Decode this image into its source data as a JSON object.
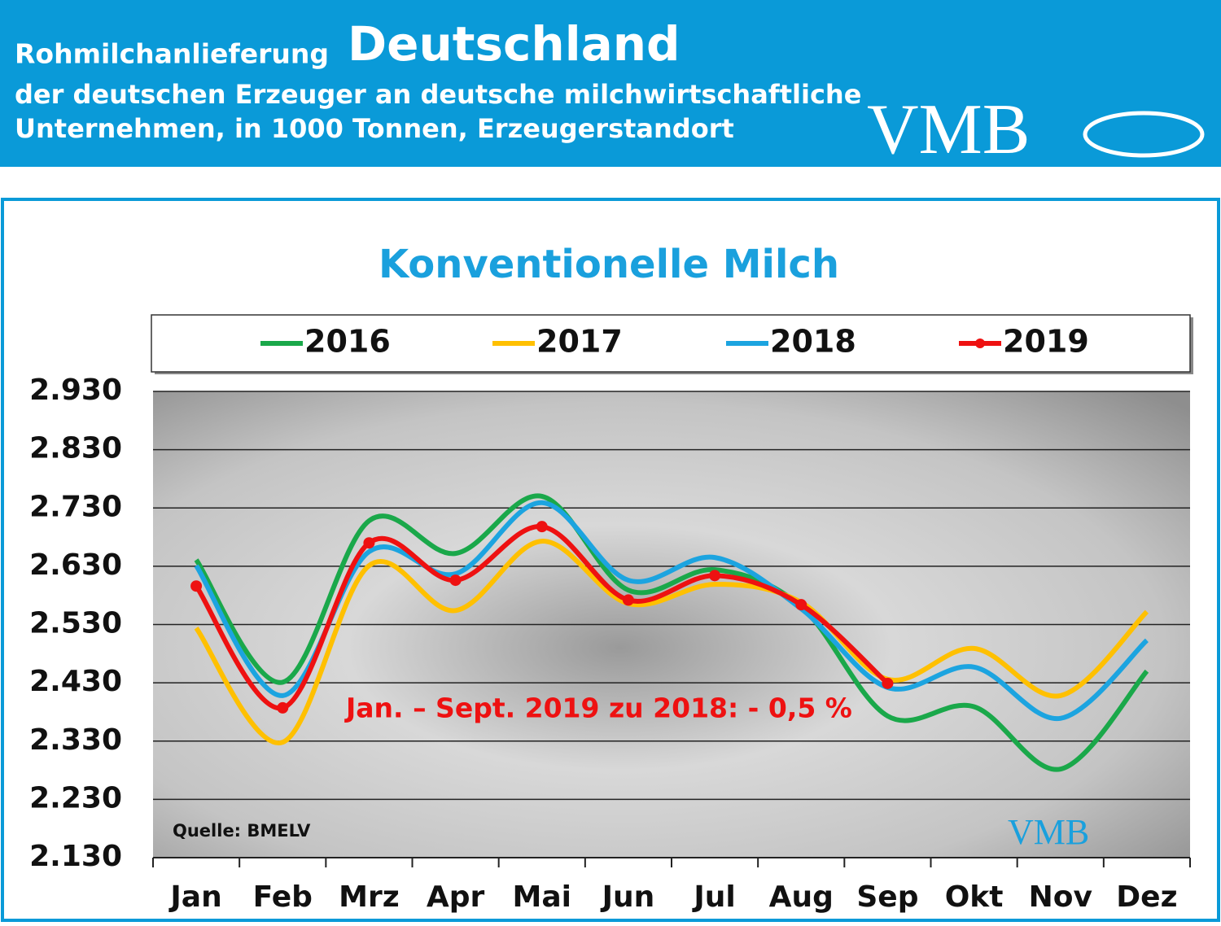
{
  "header": {
    "title_prefix": "Rohmilchanlieferung",
    "title_main": "Deutschland",
    "subtitle_line1": "der deutschen Erzeuger an deutsche milchwirtschaftliche",
    "subtitle_line2": "Unternehmen, in 1000 Tonnen, Erzeugerstandort",
    "logo": "VMB"
  },
  "chart_data": {
    "type": "line",
    "title": "Konventionelle Milch",
    "categories": [
      "Jan",
      "Feb",
      "Mrz",
      "Apr",
      "Mai",
      "Jun",
      "Jul",
      "Aug",
      "Sep",
      "Okt",
      "Nov",
      "Dez"
    ],
    "series": [
      {
        "name": "2016",
        "color": "#1aa84a",
        "values": [
          2641,
          2431,
          2708,
          2652,
          2750,
          2589,
          2624,
          2561,
          2373,
          2389,
          2282,
          2450
        ]
      },
      {
        "name": "2017",
        "color": "#ffc000",
        "values": [
          2524,
          2328,
          2631,
          2554,
          2673,
          2566,
          2599,
          2568,
          2436,
          2489,
          2408,
          2552
        ]
      },
      {
        "name": "2018",
        "color": "#1ca4e0",
        "values": [
          2631,
          2408,
          2655,
          2617,
          2739,
          2606,
          2645,
          2557,
          2422,
          2457,
          2369,
          2503
        ]
      },
      {
        "name": "2019",
        "color": "#ee1111",
        "markers": true,
        "values": [
          2596,
          2387,
          2670,
          2606,
          2698,
          2572,
          2614,
          2564,
          2429,
          null,
          null,
          null
        ]
      }
    ],
    "ylim": [
      2130,
      2930
    ],
    "yticks": [
      {
        "value": 2130,
        "label": "2.130"
      },
      {
        "value": 2230,
        "label": "2.230"
      },
      {
        "value": 2330,
        "label": "2.330"
      },
      {
        "value": 2430,
        "label": "2.430"
      },
      {
        "value": 2530,
        "label": "2.530"
      },
      {
        "value": 2630,
        "label": "2.630"
      },
      {
        "value": 2730,
        "label": "2.730"
      },
      {
        "value": 2830,
        "label": "2.830"
      },
      {
        "value": 2930,
        "label": "2.930"
      }
    ],
    "grid": true,
    "legend": "top",
    "annotation": "Jan. – Sept.  2019 zu 2018: - 0,5 %",
    "source": "Quelle: BMELV"
  }
}
